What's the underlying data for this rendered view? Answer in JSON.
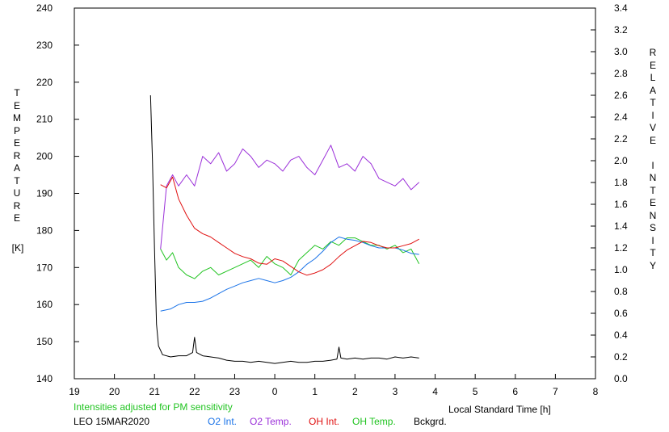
{
  "chart_data": {
    "type": "line",
    "xlabel": "Local Standard Time [h]",
    "ylabel_left_letters": [
      "T",
      "E",
      "M",
      "P",
      "E",
      "R",
      "A",
      "T",
      "U",
      "R",
      "E"
    ],
    "ylabel_left_unit": "[K]",
    "ylabel_right_letters": [
      "R",
      "E",
      "L",
      "A",
      "T",
      "I",
      "V",
      "E",
      "",
      "I",
      "N",
      "T",
      "E",
      "N",
      "S",
      "I",
      "T",
      "Y"
    ],
    "x_ticks": [
      "19",
      "20",
      "21",
      "22",
      "23",
      "0",
      "1",
      "2",
      "3",
      "4",
      "5",
      "6",
      "7",
      "8"
    ],
    "xlim": [
      19,
      32
    ],
    "left_ticks": [
      "140",
      "150",
      "160",
      "170",
      "180",
      "190",
      "200",
      "210",
      "220",
      "230",
      "240"
    ],
    "ylim_left": [
      140,
      240
    ],
    "right_ticks": [
      "0.0",
      "0.2",
      "0.4",
      "0.6",
      "0.8",
      "1.0",
      "1.2",
      "1.4",
      "1.6",
      "1.8",
      "2.0",
      "2.2",
      "2.4",
      "2.6",
      "2.8",
      "3.0",
      "3.2",
      "3.4"
    ],
    "ylim_right": [
      0,
      3.4
    ],
    "note": "Intensities adjusted for PM sensitivity",
    "station_date": "LEO 15MAR2020",
    "series": [
      {
        "name": "O2 Int.",
        "color": "#1a73e8",
        "axis": "right",
        "x": [
          21.15,
          21.4,
          21.6,
          21.8,
          22.0,
          22.2,
          22.4,
          22.6,
          22.8,
          23.0,
          23.2,
          23.4,
          23.6,
          23.8,
          24.0,
          24.2,
          24.4,
          24.6,
          24.8,
          25.0,
          25.2,
          25.4,
          25.6,
          25.8,
          26.0,
          26.2,
          26.4,
          26.6,
          26.8,
          27.0,
          27.2,
          27.4,
          27.6
        ],
        "y": [
          0.62,
          0.64,
          0.68,
          0.7,
          0.7,
          0.71,
          0.74,
          0.78,
          0.82,
          0.85,
          0.88,
          0.9,
          0.92,
          0.9,
          0.88,
          0.9,
          0.93,
          0.98,
          1.05,
          1.1,
          1.17,
          1.25,
          1.3,
          1.28,
          1.27,
          1.25,
          1.22,
          1.2,
          1.2,
          1.2,
          1.18,
          1.15,
          1.14
        ]
      },
      {
        "name": "O2 Temp.",
        "color": "#9b30d9",
        "axis": "left",
        "x": [
          21.15,
          21.3,
          21.45,
          21.6,
          21.8,
          22.0,
          22.2,
          22.4,
          22.6,
          22.8,
          23.0,
          23.2,
          23.4,
          23.6,
          23.8,
          24.0,
          24.2,
          24.4,
          24.6,
          24.8,
          25.0,
          25.2,
          25.4,
          25.6,
          25.8,
          26.0,
          26.2,
          26.4,
          26.6,
          26.8,
          27.0,
          27.2,
          27.4,
          27.6
        ],
        "y": [
          175,
          192,
          195,
          192,
          195,
          192,
          200,
          198,
          201,
          196,
          198,
          202,
          200,
          197,
          199,
          198,
          196,
          199,
          200,
          197,
          195,
          199,
          203,
          197,
          198,
          196,
          200,
          198,
          194,
          193,
          192,
          194,
          191,
          193
        ]
      },
      {
        "name": "OH Int.",
        "color": "#e01010",
        "axis": "right",
        "x": [
          21.15,
          21.3,
          21.45,
          21.6,
          21.8,
          22.0,
          22.2,
          22.4,
          22.6,
          22.8,
          23.0,
          23.2,
          23.4,
          23.6,
          23.8,
          24.0,
          24.2,
          24.4,
          24.6,
          24.8,
          25.0,
          25.2,
          25.4,
          25.6,
          25.8,
          26.0,
          26.2,
          26.4,
          26.6,
          26.8,
          27.0,
          27.2,
          27.4,
          27.6
        ],
        "y": [
          1.78,
          1.75,
          1.85,
          1.65,
          1.5,
          1.38,
          1.33,
          1.3,
          1.25,
          1.2,
          1.15,
          1.12,
          1.1,
          1.06,
          1.05,
          1.1,
          1.08,
          1.03,
          0.98,
          0.95,
          0.97,
          1.0,
          1.05,
          1.12,
          1.18,
          1.22,
          1.26,
          1.25,
          1.22,
          1.2,
          1.2,
          1.22,
          1.24,
          1.28
        ]
      },
      {
        "name": "OH Temp.",
        "color": "#22c422",
        "axis": "left",
        "x": [
          21.15,
          21.3,
          21.45,
          21.6,
          21.8,
          22.0,
          22.2,
          22.4,
          22.6,
          22.8,
          23.0,
          23.2,
          23.4,
          23.6,
          23.8,
          24.0,
          24.2,
          24.4,
          24.6,
          24.8,
          25.0,
          25.2,
          25.4,
          25.6,
          25.8,
          26.0,
          26.2,
          26.4,
          26.6,
          26.8,
          27.0,
          27.2,
          27.4,
          27.6
        ],
        "y": [
          175,
          172,
          174,
          170,
          168,
          167,
          169,
          170,
          168,
          169,
          170,
          171,
          172,
          170,
          173,
          171,
          170,
          168,
          172,
          174,
          176,
          175,
          177,
          176,
          178,
          178,
          177,
          176,
          176,
          175,
          176,
          174,
          175,
          171
        ]
      },
      {
        "name": "Bckgrd.",
        "color": "#000000",
        "axis": "right",
        "x": [
          20.9,
          20.95,
          21.0,
          21.05,
          21.1,
          21.2,
          21.4,
          21.6,
          21.8,
          21.95,
          22.0,
          22.05,
          22.2,
          22.4,
          22.6,
          22.8,
          23.0,
          23.2,
          23.4,
          23.6,
          23.8,
          24.0,
          24.2,
          24.4,
          24.6,
          24.8,
          25.0,
          25.2,
          25.4,
          25.55,
          25.6,
          25.65,
          25.8,
          26.0,
          26.2,
          26.4,
          26.6,
          26.8,
          27.0,
          27.2,
          27.4,
          27.6
        ],
        "y": [
          2.6,
          2.0,
          1.2,
          0.5,
          0.3,
          0.22,
          0.2,
          0.21,
          0.21,
          0.24,
          0.38,
          0.24,
          0.21,
          0.2,
          0.19,
          0.17,
          0.16,
          0.16,
          0.15,
          0.16,
          0.15,
          0.14,
          0.15,
          0.16,
          0.15,
          0.15,
          0.16,
          0.16,
          0.17,
          0.18,
          0.29,
          0.19,
          0.18,
          0.19,
          0.18,
          0.19,
          0.19,
          0.18,
          0.2,
          0.19,
          0.2,
          0.19
        ]
      }
    ]
  }
}
